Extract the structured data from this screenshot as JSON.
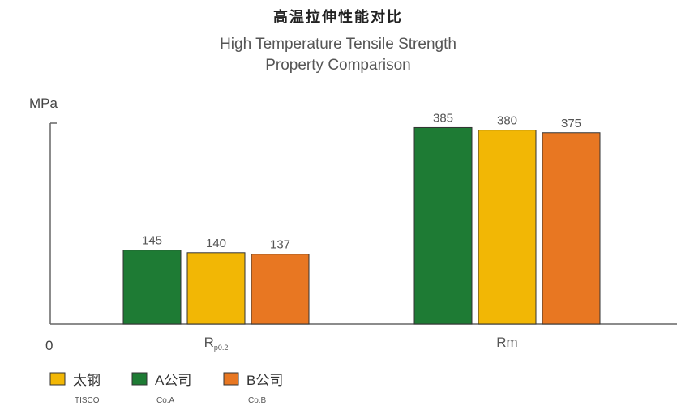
{
  "title": "高温拉伸性能对比",
  "subtitle_line1": "High Temperature Tensile Strength",
  "subtitle_line2": "Property Comparison",
  "chart_data": {
    "type": "bar",
    "title": "高温拉伸性能对比",
    "subtitle": "High Temperature Tensile Strength Property Comparison",
    "ylabel": "MPa",
    "y_origin_label": "0",
    "ylim": [
      0,
      400
    ],
    "grid": false,
    "legend_position": "bottom-left",
    "categories": [
      {
        "main": "R",
        "sub": "p0.2"
      },
      {
        "main": "Rm",
        "sub": ""
      }
    ],
    "series": [
      {
        "name": "太钢",
        "name_en": "TISCO",
        "color": "#F2B705",
        "values": [
          140,
          380
        ]
      },
      {
        "name": "A公司",
        "name_en": "Co.A",
        "color": "#1E7B34",
        "values": [
          145,
          385
        ]
      },
      {
        "name": "B公司",
        "name_en": "Co.B",
        "color": "#E87722",
        "values": [
          137,
          375
        ]
      }
    ],
    "bar_order": [
      1,
      0,
      2
    ]
  }
}
